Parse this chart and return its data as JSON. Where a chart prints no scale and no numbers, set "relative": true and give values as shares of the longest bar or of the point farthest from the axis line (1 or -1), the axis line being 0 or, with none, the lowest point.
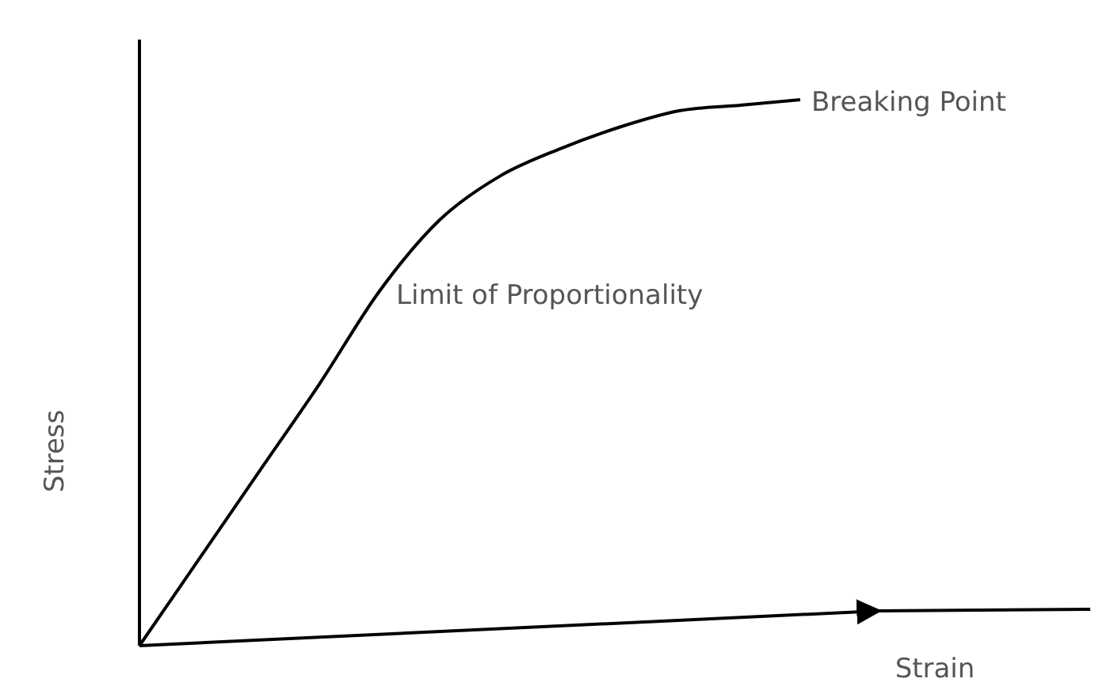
{
  "chart_data": {
    "type": "line",
    "relative": true,
    "xlabel": "Strain",
    "ylabel": "Stress",
    "categories": [
      null,
      null,
      null,
      null,
      null,
      null,
      null,
      null,
      null,
      null,
      null,
      null
    ],
    "series": [
      {
        "color": "#000000",
        "values": [
          0,
          0.16,
          0.32,
          0.48,
          0.65,
          0.78,
          0.86,
          0.91,
          0.95,
          0.98,
          0.99,
          1
        ]
      }
    ],
    "annotations": [
      "Limit of Proportionality",
      "Breaking Point"
    ],
    "marker": "none",
    "line_style": "solid",
    "grid": false
  }
}
